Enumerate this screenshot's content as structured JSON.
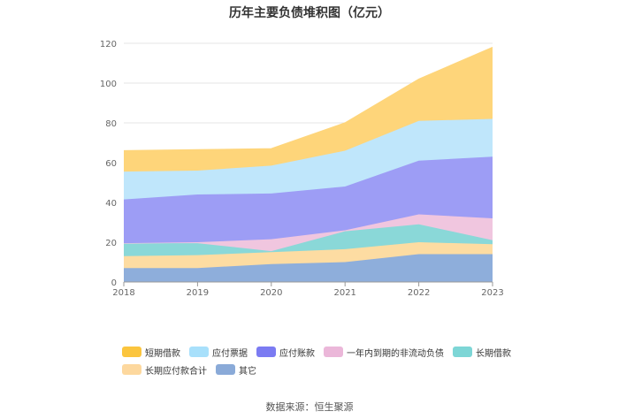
{
  "title": "历年主要负债堆积图（亿元）",
  "source": "数据来源：恒生聚源",
  "chart_data": {
    "type": "area",
    "stacked": true,
    "title": "历年主要负债堆积图（亿元）",
    "x": [
      "2018",
      "2019",
      "2020",
      "2021",
      "2022",
      "2023"
    ],
    "ylim": [
      0,
      120
    ],
    "yticks": [
      "0",
      "20",
      "40",
      "60",
      "80",
      "100",
      "120"
    ],
    "grid": true,
    "legend_position": "bottom",
    "series": [
      {
        "name": "其它",
        "color": "#8eaedb",
        "values": [
          7,
          7,
          9,
          10,
          14,
          14
        ]
      },
      {
        "name": "长期应付款合计",
        "color": "#fddca2",
        "values": [
          6,
          6.5,
          6,
          6.5,
          6,
          5
        ]
      },
      {
        "name": "长期借款",
        "color": "#8ad8d8",
        "values": [
          6.5,
          6,
          0.5,
          9,
          9,
          2
        ]
      },
      {
        "name": "一年内到期的非流动负债",
        "color": "#f0c6df",
        "values": [
          0,
          0.5,
          6,
          0.5,
          5,
          11
        ]
      },
      {
        "name": "应付账款",
        "color": "#9d9df5",
        "values": [
          22,
          24,
          23,
          22,
          27,
          31
        ]
      },
      {
        "name": "应付票据",
        "color": "#bfe6fb",
        "values": [
          14,
          12,
          14,
          18,
          20,
          19
        ]
      },
      {
        "name": "短期借款",
        "color": "#fed57a",
        "values": [
          10.5,
          10.5,
          8.5,
          14,
          21,
          36
        ]
      }
    ]
  },
  "legend": {
    "rows": [
      [
        {
          "label": "短期借款",
          "color": "#fbc53e"
        },
        {
          "label": "应付票据",
          "color": "#a8e0fb"
        },
        {
          "label": "应付账款",
          "color": "#7b7bf2"
        },
        {
          "label": "一年内到期的非流动负债",
          "color": "#ebb7d9"
        },
        {
          "label": "长期借款",
          "color": "#7dd6d6"
        }
      ],
      [
        {
          "label": "长期应付款合计",
          "color": "#fdd89e"
        },
        {
          "label": "其它",
          "color": "#8aaad8"
        }
      ]
    ]
  }
}
